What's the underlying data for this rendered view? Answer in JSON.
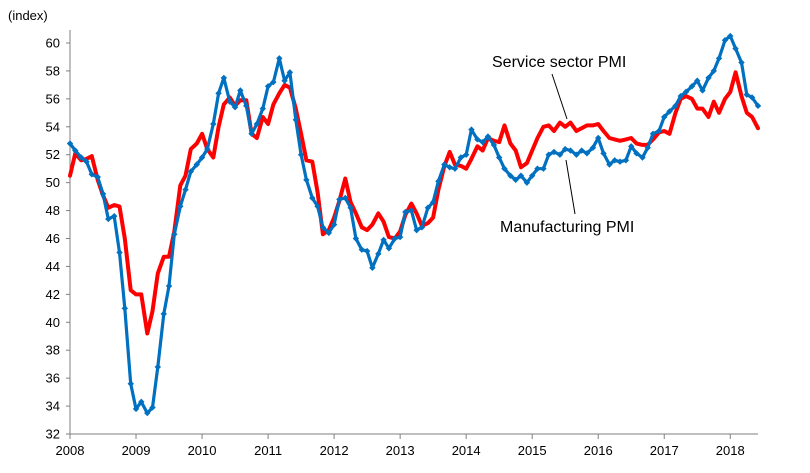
{
  "chart_data": {
    "type": "line",
    "title": "",
    "xlabel": "",
    "ylabel": "(index)",
    "ylim": [
      32,
      61
    ],
    "yticks": [
      32,
      34,
      36,
      38,
      40,
      42,
      44,
      46,
      48,
      50,
      52,
      54,
      56,
      58,
      60
    ],
    "xlim": [
      2008.0,
      2018.42
    ],
    "xticks": [
      "2008",
      "2009",
      "2010",
      "2011",
      "2012",
      "2013",
      "2014",
      "2015",
      "2016",
      "2017",
      "2018"
    ],
    "grid": false,
    "legend": "none",
    "annotations": [
      {
        "text": "Service sector PMI",
        "series": "Service sector PMI"
      },
      {
        "text": "Manufacturing PMI",
        "series": "Manufacturing PMI"
      }
    ],
    "series": [
      {
        "name": "Manufacturing PMI",
        "color": "#0070C0",
        "marker": "diamond",
        "points": [
          [
            2008.0,
            52.8
          ],
          [
            2008.08,
            52.3
          ],
          [
            2008.17,
            51.8
          ],
          [
            2008.25,
            51.5
          ],
          [
            2008.33,
            50.6
          ],
          [
            2008.42,
            50.4
          ],
          [
            2008.5,
            49.2
          ],
          [
            2008.58,
            47.4
          ],
          [
            2008.67,
            47.6
          ],
          [
            2008.75,
            45.0
          ],
          [
            2008.83,
            41.0
          ],
          [
            2008.92,
            35.6
          ],
          [
            2009.0,
            33.8
          ],
          [
            2009.08,
            34.3
          ],
          [
            2009.17,
            33.5
          ],
          [
            2009.25,
            33.9
          ],
          [
            2009.33,
            36.8
          ],
          [
            2009.42,
            40.6
          ],
          [
            2009.5,
            42.6
          ],
          [
            2009.58,
            46.3
          ],
          [
            2009.67,
            48.3
          ],
          [
            2009.75,
            49.5
          ],
          [
            2009.83,
            50.8
          ],
          [
            2009.92,
            51.3
          ],
          [
            2010.0,
            51.8
          ],
          [
            2010.08,
            52.4
          ],
          [
            2010.17,
            54.2
          ],
          [
            2010.25,
            56.4
          ],
          [
            2010.33,
            57.5
          ],
          [
            2010.42,
            55.8
          ],
          [
            2010.5,
            55.4
          ],
          [
            2010.58,
            56.6
          ],
          [
            2010.67,
            55.5
          ],
          [
            2010.75,
            53.5
          ],
          [
            2010.83,
            54.2
          ],
          [
            2010.92,
            55.3
          ],
          [
            2011.0,
            56.9
          ],
          [
            2011.08,
            57.2
          ],
          [
            2011.17,
            58.9
          ],
          [
            2011.25,
            57.3
          ],
          [
            2011.33,
            57.9
          ],
          [
            2011.42,
            54.5
          ],
          [
            2011.5,
            52.0
          ],
          [
            2011.58,
            50.2
          ],
          [
            2011.67,
            48.9
          ],
          [
            2011.75,
            48.3
          ],
          [
            2011.83,
            46.8
          ],
          [
            2011.92,
            46.4
          ],
          [
            2012.0,
            47.0
          ],
          [
            2012.08,
            48.8
          ],
          [
            2012.17,
            48.9
          ],
          [
            2012.25,
            48.2
          ],
          [
            2012.33,
            46.0
          ],
          [
            2012.42,
            45.2
          ],
          [
            2012.5,
            45.1
          ],
          [
            2012.58,
            43.9
          ],
          [
            2012.67,
            44.9
          ],
          [
            2012.75,
            45.9
          ],
          [
            2012.83,
            45.3
          ],
          [
            2012.92,
            46.0
          ],
          [
            2013.0,
            46.1
          ],
          [
            2013.08,
            47.9
          ],
          [
            2013.17,
            48.0
          ],
          [
            2013.25,
            46.6
          ],
          [
            2013.33,
            46.8
          ],
          [
            2013.42,
            48.2
          ],
          [
            2013.5,
            48.6
          ],
          [
            2013.58,
            50.1
          ],
          [
            2013.67,
            51.3
          ],
          [
            2013.75,
            51.1
          ],
          [
            2013.83,
            51.0
          ],
          [
            2013.92,
            51.8
          ],
          [
            2014.0,
            52.0
          ],
          [
            2014.08,
            53.8
          ],
          [
            2014.17,
            53.1
          ],
          [
            2014.25,
            52.9
          ],
          [
            2014.33,
            53.3
          ],
          [
            2014.42,
            52.7
          ],
          [
            2014.5,
            51.8
          ],
          [
            2014.58,
            51.0
          ],
          [
            2014.67,
            50.5
          ],
          [
            2014.75,
            50.2
          ],
          [
            2014.83,
            50.5
          ],
          [
            2014.92,
            50.0
          ],
          [
            2015.0,
            50.5
          ],
          [
            2015.08,
            51.0
          ],
          [
            2015.17,
            51.0
          ],
          [
            2015.25,
            52.0
          ],
          [
            2015.33,
            52.2
          ],
          [
            2015.42,
            52.0
          ],
          [
            2015.5,
            52.4
          ],
          [
            2015.58,
            52.3
          ],
          [
            2015.67,
            52.0
          ],
          [
            2015.75,
            52.3
          ],
          [
            2015.83,
            52.1
          ],
          [
            2015.92,
            52.5
          ],
          [
            2016.0,
            53.2
          ],
          [
            2016.08,
            52.1
          ],
          [
            2016.17,
            51.3
          ],
          [
            2016.25,
            51.6
          ],
          [
            2016.33,
            51.5
          ],
          [
            2016.42,
            51.6
          ],
          [
            2016.5,
            52.6
          ],
          [
            2016.58,
            52.1
          ],
          [
            2016.67,
            51.8
          ],
          [
            2016.75,
            52.5
          ],
          [
            2016.83,
            53.5
          ],
          [
            2016.92,
            53.7
          ],
          [
            2017.0,
            54.7
          ],
          [
            2017.08,
            55.1
          ],
          [
            2017.17,
            55.5
          ],
          [
            2017.25,
            56.2
          ],
          [
            2017.33,
            56.5
          ],
          [
            2017.42,
            56.9
          ],
          [
            2017.5,
            57.3
          ],
          [
            2017.58,
            56.6
          ],
          [
            2017.67,
            57.5
          ],
          [
            2017.75,
            58.0
          ],
          [
            2017.83,
            58.9
          ],
          [
            2017.92,
            60.2
          ],
          [
            2018.0,
            60.5
          ],
          [
            2018.08,
            59.6
          ],
          [
            2018.17,
            58.6
          ],
          [
            2018.25,
            56.3
          ],
          [
            2018.33,
            56.1
          ],
          [
            2018.42,
            55.5
          ]
        ]
      },
      {
        "name": "Service sector PMI",
        "color": "#FF0000",
        "marker": "none",
        "points": [
          [
            2008.0,
            50.5
          ],
          [
            2008.08,
            52.1
          ],
          [
            2008.17,
            51.6
          ],
          [
            2008.25,
            51.7
          ],
          [
            2008.33,
            51.9
          ],
          [
            2008.42,
            50.2
          ],
          [
            2008.5,
            49.1
          ],
          [
            2008.58,
            48.2
          ],
          [
            2008.67,
            48.4
          ],
          [
            2008.75,
            48.3
          ],
          [
            2008.83,
            46.0
          ],
          [
            2008.92,
            42.3
          ],
          [
            2009.0,
            42.0
          ],
          [
            2009.08,
            42.0
          ],
          [
            2009.17,
            39.2
          ],
          [
            2009.25,
            40.8
          ],
          [
            2009.33,
            43.5
          ],
          [
            2009.42,
            44.7
          ],
          [
            2009.5,
            44.7
          ],
          [
            2009.58,
            46.5
          ],
          [
            2009.67,
            49.8
          ],
          [
            2009.75,
            50.5
          ],
          [
            2009.83,
            52.4
          ],
          [
            2009.92,
            52.8
          ],
          [
            2010.0,
            53.5
          ],
          [
            2010.08,
            52.4
          ],
          [
            2010.17,
            51.8
          ],
          [
            2010.25,
            54.0
          ],
          [
            2010.33,
            55.6
          ],
          [
            2010.42,
            56.1
          ],
          [
            2010.5,
            55.5
          ],
          [
            2010.58,
            55.9
          ],
          [
            2010.67,
            55.9
          ],
          [
            2010.75,
            53.5
          ],
          [
            2010.83,
            53.2
          ],
          [
            2010.92,
            54.7
          ],
          [
            2011.0,
            54.2
          ],
          [
            2011.08,
            55.6
          ],
          [
            2011.17,
            56.4
          ],
          [
            2011.25,
            57.0
          ],
          [
            2011.33,
            56.8
          ],
          [
            2011.42,
            55.3
          ],
          [
            2011.5,
            53.5
          ],
          [
            2011.58,
            51.6
          ],
          [
            2011.67,
            51.5
          ],
          [
            2011.75,
            49.3
          ],
          [
            2011.83,
            46.3
          ],
          [
            2011.92,
            46.6
          ],
          [
            2012.0,
            47.5
          ],
          [
            2012.08,
            48.7
          ],
          [
            2012.17,
            50.3
          ],
          [
            2012.25,
            48.6
          ],
          [
            2012.33,
            47.8
          ],
          [
            2012.42,
            46.8
          ],
          [
            2012.5,
            46.6
          ],
          [
            2012.58,
            47.0
          ],
          [
            2012.67,
            47.8
          ],
          [
            2012.75,
            47.2
          ],
          [
            2012.83,
            46.1
          ],
          [
            2012.92,
            46.0
          ],
          [
            2013.0,
            46.5
          ],
          [
            2013.08,
            47.7
          ],
          [
            2013.17,
            48.5
          ],
          [
            2013.25,
            47.8
          ],
          [
            2013.33,
            46.9
          ],
          [
            2013.42,
            47.1
          ],
          [
            2013.5,
            47.5
          ],
          [
            2013.58,
            49.5
          ],
          [
            2013.67,
            51.2
          ],
          [
            2013.75,
            52.2
          ],
          [
            2013.83,
            51.3
          ],
          [
            2013.92,
            51.2
          ],
          [
            2014.0,
            51.0
          ],
          [
            2014.08,
            51.7
          ],
          [
            2014.17,
            52.6
          ],
          [
            2014.25,
            52.3
          ],
          [
            2014.33,
            53.2
          ],
          [
            2014.42,
            53.0
          ],
          [
            2014.5,
            52.9
          ],
          [
            2014.58,
            54.1
          ],
          [
            2014.67,
            52.8
          ],
          [
            2014.75,
            52.3
          ],
          [
            2014.83,
            51.1
          ],
          [
            2014.92,
            51.4
          ],
          [
            2015.0,
            52.3
          ],
          [
            2015.08,
            53.2
          ],
          [
            2015.17,
            54.0
          ],
          [
            2015.25,
            54.1
          ],
          [
            2015.33,
            53.7
          ],
          [
            2015.42,
            54.3
          ],
          [
            2015.5,
            54.0
          ],
          [
            2015.58,
            54.3
          ],
          [
            2015.67,
            53.7
          ],
          [
            2015.75,
            53.9
          ],
          [
            2015.83,
            54.1
          ],
          [
            2015.92,
            54.1
          ],
          [
            2016.0,
            54.2
          ],
          [
            2016.08,
            53.7
          ],
          [
            2016.17,
            53.2
          ],
          [
            2016.25,
            53.1
          ],
          [
            2016.33,
            53.0
          ],
          [
            2016.42,
            53.1
          ],
          [
            2016.5,
            53.2
          ],
          [
            2016.58,
            52.8
          ],
          [
            2016.67,
            52.7
          ],
          [
            2016.75,
            52.7
          ],
          [
            2016.83,
            53.1
          ],
          [
            2016.92,
            53.6
          ],
          [
            2017.0,
            53.7
          ],
          [
            2017.08,
            53.5
          ],
          [
            2017.17,
            55.0
          ],
          [
            2017.25,
            56.0
          ],
          [
            2017.33,
            56.2
          ],
          [
            2017.42,
            56.0
          ],
          [
            2017.5,
            55.3
          ],
          [
            2017.58,
            55.3
          ],
          [
            2017.67,
            54.7
          ],
          [
            2017.75,
            55.8
          ],
          [
            2017.83,
            55.0
          ],
          [
            2017.92,
            56.0
          ],
          [
            2018.0,
            56.5
          ],
          [
            2018.08,
            57.9
          ],
          [
            2018.17,
            56.2
          ],
          [
            2018.25,
            55.0
          ],
          [
            2018.33,
            54.7
          ],
          [
            2018.42,
            53.9
          ]
        ]
      }
    ]
  }
}
